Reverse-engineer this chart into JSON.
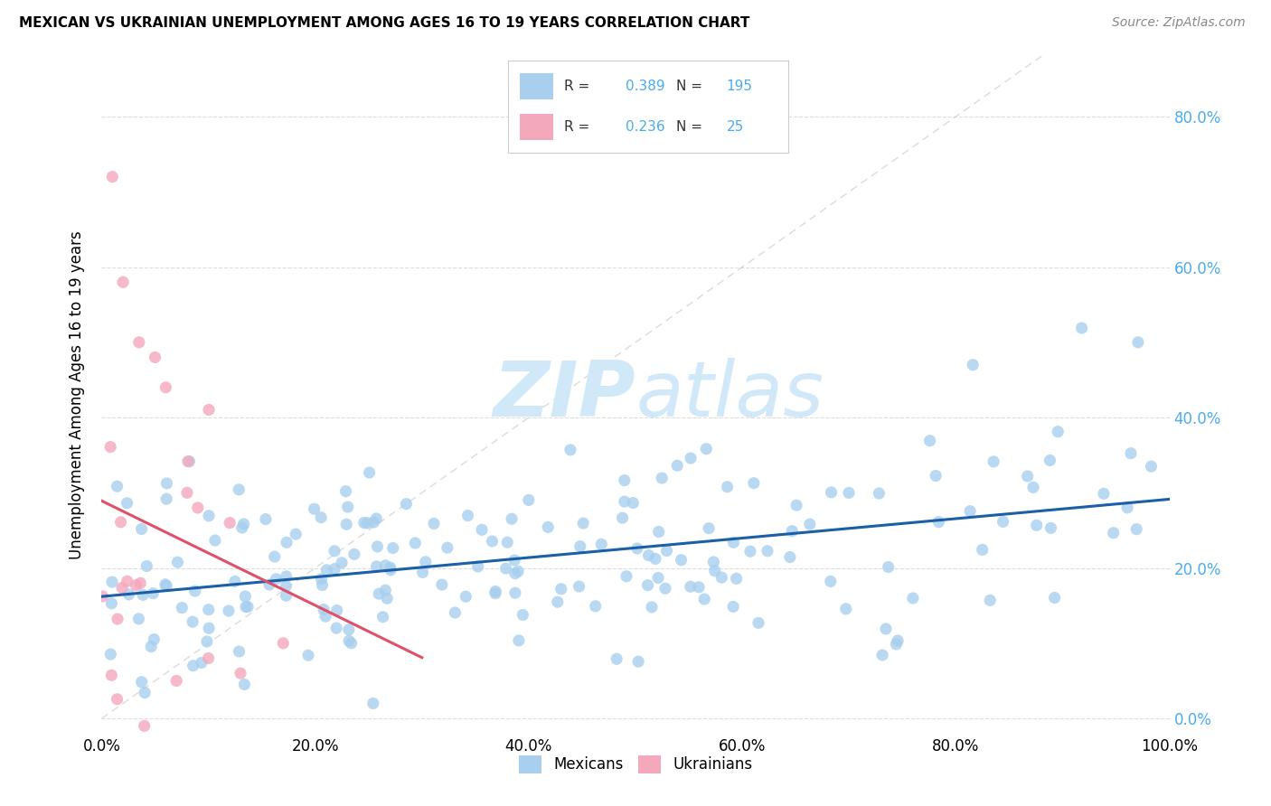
{
  "title": "MEXICAN VS UKRAINIAN UNEMPLOYMENT AMONG AGES 16 TO 19 YEARS CORRELATION CHART",
  "source": "Source: ZipAtlas.com",
  "ylabel": "Unemployment Among Ages 16 to 19 years",
  "legend_label1": "Mexicans",
  "legend_label2": "Ukrainians",
  "R_mexican": 0.389,
  "N_mexican": 195,
  "R_ukrainian": 0.236,
  "N_ukrainian": 25,
  "color_mexican": "#A8CFEE",
  "color_ukrainian": "#F4A8BC",
  "color_mexican_line": "#1A5FA8",
  "color_ukrainian_line": "#E0506A",
  "color_diagonal": "#CCCCCC",
  "color_ytick": "#4AABF0",
  "watermark_color": "#D0E8F8",
  "background_color": "#FFFFFF",
  "xlim": [
    0.0,
    1.0
  ],
  "ylim": [
    -0.02,
    0.88
  ],
  "ytick_vals": [
    0.0,
    0.2,
    0.4,
    0.6,
    0.8
  ],
  "xtick_vals": [
    0.0,
    0.2,
    0.4,
    0.6,
    0.8,
    1.0
  ]
}
